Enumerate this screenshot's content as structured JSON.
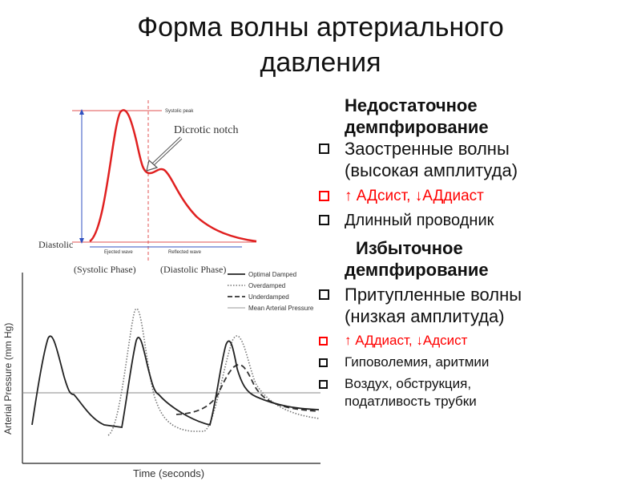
{
  "slide": {
    "title_line1": "Форма волны артериального",
    "title_line2": "давления"
  },
  "upper_figure": {
    "notch_label": "Dicrotic notch",
    "systolic_peak_label": "Systolic peak",
    "diastolic_label": "Diastolic",
    "ejected_wave_label": "Ejected wave",
    "reflected_wave_label": "Reflected wave",
    "systolic_phase_label": "(Systolic Phase)",
    "diastolic_phase_label": "(Diastolic Phase)",
    "colors": {
      "waveform": "#e02020",
      "reference_lines": "#e05050",
      "axes": "#3050c0"
    }
  },
  "lower_figure": {
    "ylabel": "Arterial Pressure (mm Hg)",
    "xlabel": "Time (seconds)",
    "legend": [
      "Optimal Damped",
      "Overdamped",
      "Underdamped",
      "Mean Arterial Pressure"
    ]
  },
  "bullets": {
    "under_heading_1": "Недостаточное",
    "under_heading_2": "демпфирование",
    "under_1a": "Заостренные волны",
    "under_1b": "(высокая амплитуда)",
    "under_2": "↑ АДсист, ↓АДдиаст",
    "under_3": "Длинный проводник",
    "over_heading_1": "Избыточное",
    "over_heading_2": "демпфирование",
    "over_1a": "Притупленные волны",
    "over_1b": "(низкая амплитуда)",
    "over_2": "↑ АДдиаст, ↓Адсист",
    "over_3": "Гиповолемия, аритмии",
    "over_4a": "Воздух, обструкция,",
    "over_4b": "податливость трубки",
    "colors": {
      "highlight": "#ff0000"
    }
  }
}
